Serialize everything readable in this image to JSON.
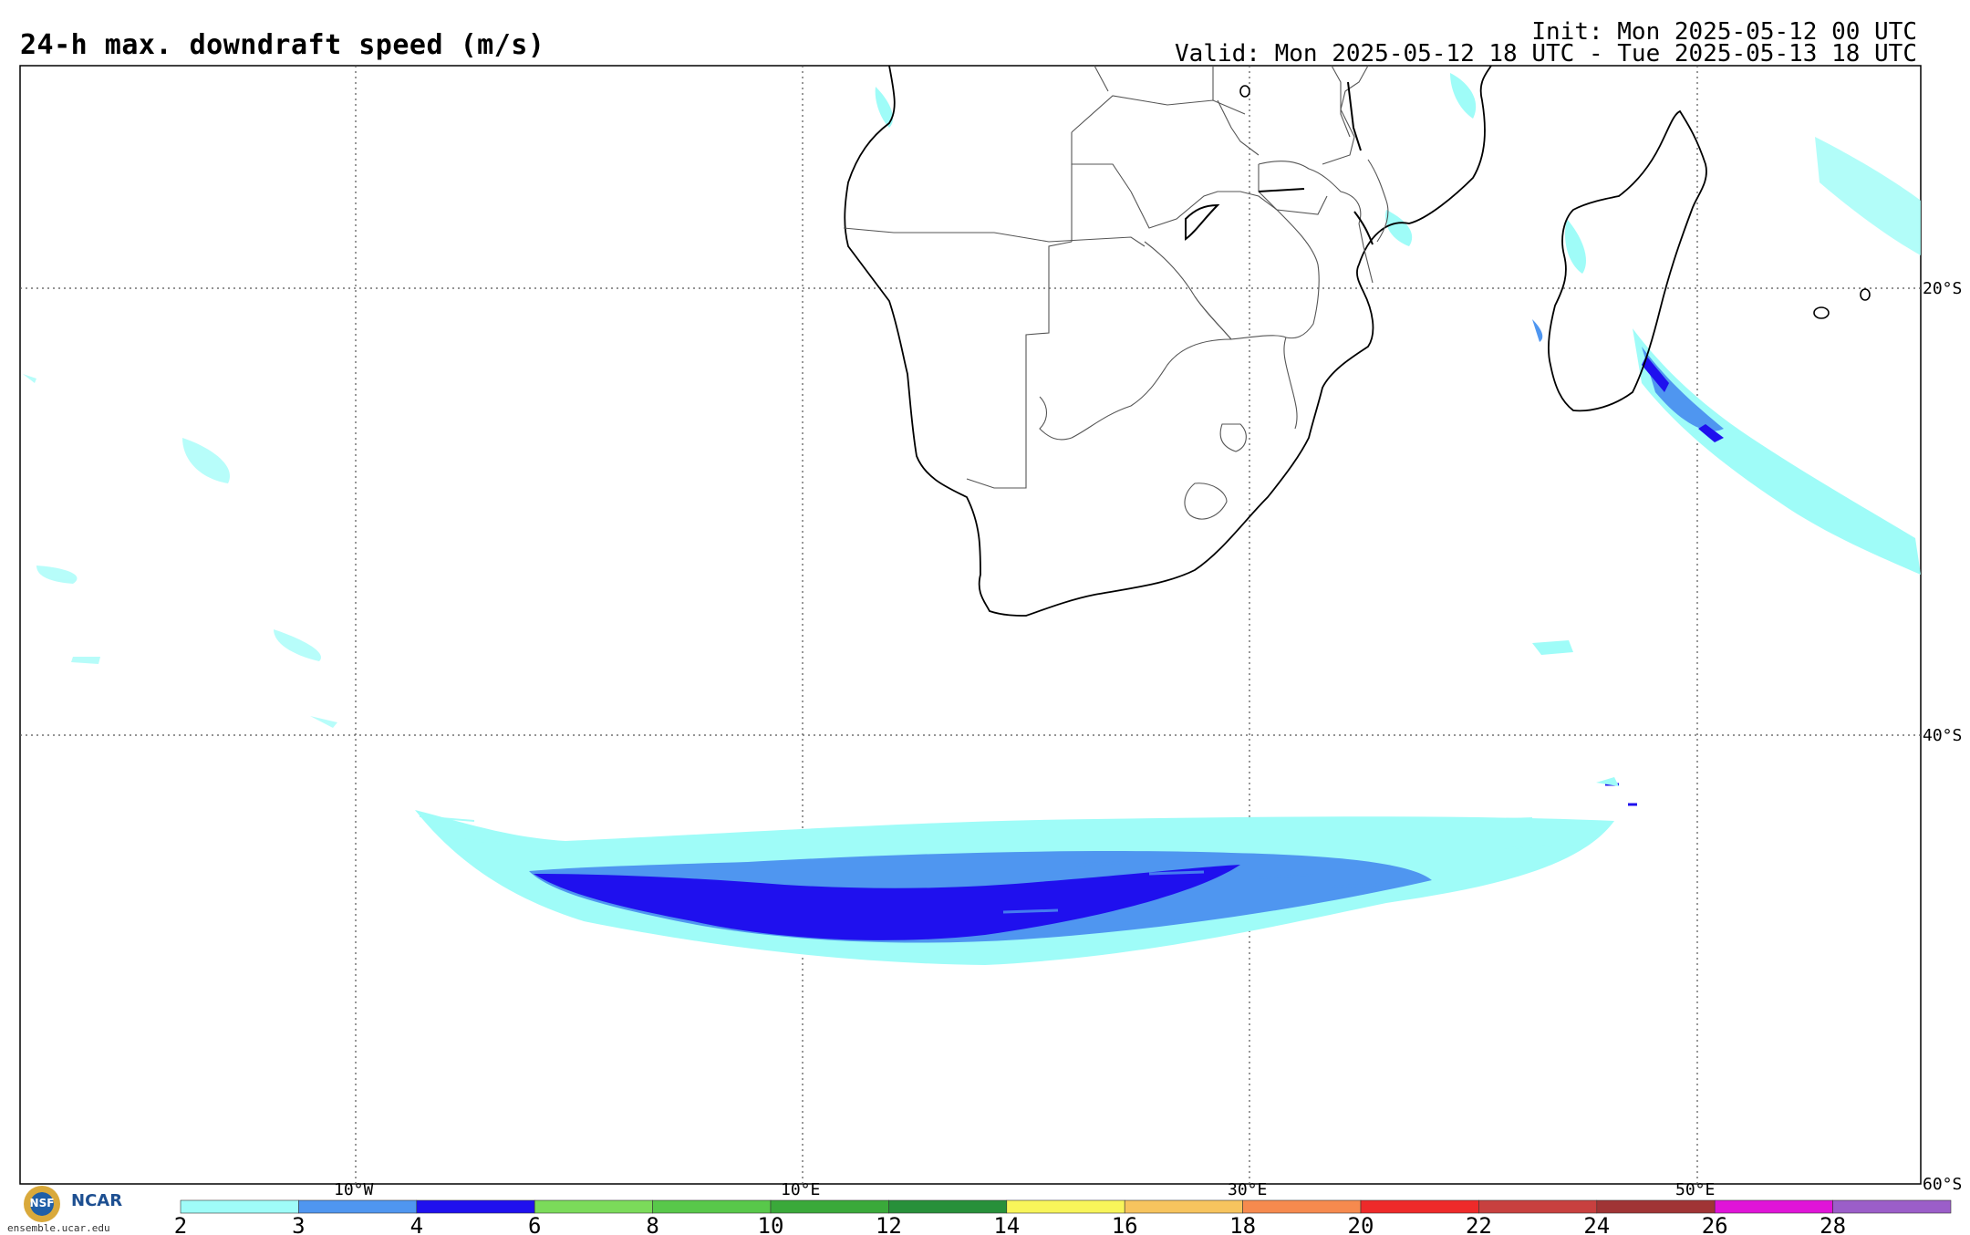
{
  "title": "24-h max. downdraft speed (m/s)",
  "init": "Init: Mon 2025-05-12 00 UTC",
  "valid": "Valid: Mon 2025-05-12 18 UTC - Tue 2025-05-13 18 UTC",
  "lon_labels": [
    "10°W",
    "10°E",
    "30°E",
    "50°E"
  ],
  "lat_labels": [
    "20°S",
    "40°S",
    "60°S"
  ],
  "colorbar": {
    "ticks": [
      "2",
      "3",
      "4",
      "6",
      "8",
      "10",
      "12",
      "14",
      "16",
      "18",
      "20",
      "22",
      "24",
      "26",
      "28"
    ],
    "colors": [
      "#9ffcf8",
      "#4f96f0",
      "#1f10ee",
      "#7bdb5a",
      "#58c84a",
      "#3aa93a",
      "#27903a",
      "#f8f55a",
      "#f7c45e",
      "#f68a4e",
      "#ee2a2a",
      "#c8403f",
      "#a03435",
      "#e014d8",
      "#9b5ec9"
    ]
  },
  "logos": {
    "nsf": "NSF",
    "ncar": "NCAR",
    "url": "ensemble.ucar.edu"
  }
}
